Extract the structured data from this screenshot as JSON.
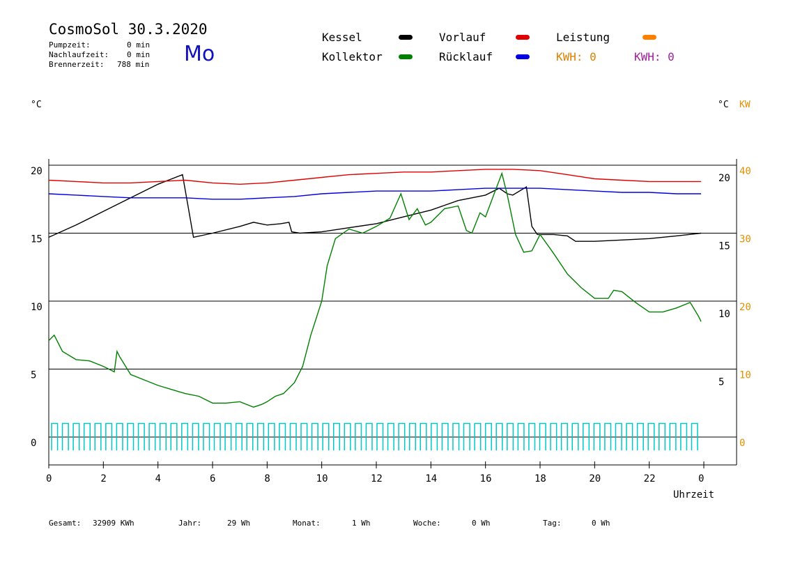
{
  "header": {
    "title": "CosmoSol 30.3.2020",
    "pump_label": "Pumpzeit:",
    "pump_value": "0 min",
    "nachlauf_label": "Nachlaufzeit:",
    "nachlauf_value": "0 min",
    "brenner_label": "Brennerzeit:",
    "brenner_value": "788 min",
    "day": "Mo"
  },
  "legend": {
    "kessel": "Kessel",
    "vorlauf": "Vorlauf",
    "leistung": "Leistung",
    "kollektor": "Kollektor",
    "ruecklauf": "Rücklauf",
    "kwh1": "KWH: 0",
    "kwh2": "KWH: 0"
  },
  "colors": {
    "kessel": "#000000",
    "vorlauf": "#e00000",
    "leistung": "#ff8000",
    "kollektor": "#008000",
    "ruecklauf": "#0000e0",
    "pump": "#00c8c8",
    "kwh1": "#e08000",
    "kwh2": "#a020a0",
    "axis_right_orange": "#e09000"
  },
  "footer": {
    "gesamt_label": "Gesamt:",
    "gesamt_value": "32909 KWh",
    "jahr_label": "Jahr:",
    "jahr_value": "29 Wh",
    "monat_label": "Monat:",
    "monat_value": "1 Wh",
    "woche_label": "Woche:",
    "woche_value": "0 Wh",
    "tag_label": "Tag:",
    "tag_value": "0 Wh"
  },
  "chart_data": {
    "type": "line",
    "xlabel": "Uhrzeit",
    "ylabel_left": "°C",
    "ylabel_right": "°C",
    "ylabel_right2": "KW",
    "xlim": [
      0,
      24
    ],
    "ylim": [
      0,
      20
    ],
    "x_ticks": [
      "0",
      "2",
      "4",
      "6",
      "8",
      "10",
      "12",
      "14",
      "16",
      "18",
      "20",
      "22",
      "0"
    ],
    "y_ticks_left": [
      "0",
      "5",
      "10",
      "15",
      "20"
    ],
    "y_ticks_right": [
      "5",
      "10",
      "15",
      "20"
    ],
    "y_ticks_right_kw": [
      "0",
      "10",
      "20",
      "30",
      "40"
    ],
    "grid": true,
    "series": [
      {
        "name": "Kessel",
        "color": "#000000",
        "x": [
          0,
          1,
          2,
          3,
          4,
          4.9,
          5.1,
          5.3,
          6,
          7,
          7.5,
          8,
          8.5,
          8.8,
          8.9,
          9.2,
          10,
          11,
          12,
          13,
          14,
          15,
          16,
          16.5,
          16.8,
          17,
          17.5,
          17.7,
          17.9,
          18.5,
          19,
          19.3,
          20,
          21,
          22,
          23,
          23.9
        ],
        "y": [
          14.7,
          15.6,
          16.6,
          17.6,
          18.6,
          19.3,
          17.0,
          14.7,
          15.0,
          15.5,
          15.8,
          15.6,
          15.7,
          15.8,
          15.1,
          15.0,
          15.1,
          15.4,
          15.7,
          16.2,
          16.7,
          17.4,
          17.8,
          18.3,
          17.9,
          17.8,
          18.4,
          15.5,
          14.9,
          14.9,
          14.8,
          14.4,
          14.4,
          14.5,
          14.6,
          14.8,
          15.0
        ]
      },
      {
        "name": "Vorlauf",
        "color": "#e00000",
        "x": [
          0,
          1,
          2,
          3,
          4,
          5,
          6,
          7,
          8,
          9,
          10,
          11,
          12,
          13,
          14,
          15,
          16,
          17,
          18,
          19,
          20,
          21,
          22,
          23,
          23.9
        ],
        "y": [
          18.9,
          18.8,
          18.7,
          18.7,
          18.8,
          18.9,
          18.7,
          18.6,
          18.7,
          18.9,
          19.1,
          19.3,
          19.4,
          19.5,
          19.5,
          19.6,
          19.7,
          19.7,
          19.6,
          19.3,
          19.0,
          18.9,
          18.8,
          18.8,
          18.8
        ]
      },
      {
        "name": "Rücklauf",
        "color": "#0000e0",
        "x": [
          0,
          1,
          2,
          3,
          4,
          5,
          6,
          7,
          8,
          9,
          10,
          11,
          12,
          13,
          14,
          15,
          16,
          17,
          18,
          19,
          20,
          21,
          22,
          23,
          23.9
        ],
        "y": [
          17.9,
          17.8,
          17.7,
          17.6,
          17.6,
          17.6,
          17.5,
          17.5,
          17.6,
          17.7,
          17.9,
          18.0,
          18.1,
          18.1,
          18.1,
          18.2,
          18.3,
          18.3,
          18.3,
          18.2,
          18.1,
          18.0,
          18.0,
          17.9,
          17.9
        ]
      },
      {
        "name": "Kollektor",
        "color": "#008000",
        "x": [
          0,
          0.2,
          0.5,
          1,
          1.5,
          2,
          2.4,
          2.5,
          2.6,
          3,
          3.5,
          4,
          4.5,
          5,
          5.5,
          6,
          6.5,
          7,
          7.5,
          7.8,
          8,
          8.3,
          8.6,
          9,
          9.3,
          9.6,
          10,
          10.2,
          10.5,
          11,
          11.5,
          12,
          12.5,
          12.9,
          13.2,
          13.5,
          13.8,
          14,
          14.5,
          15,
          15.3,
          15.5,
          15.8,
          16,
          16.3,
          16.6,
          16.8,
          17.1,
          17.4,
          17.7,
          18,
          18.5,
          19,
          19.5,
          20,
          20.5,
          20.7,
          21,
          21.5,
          22,
          22.5,
          23,
          23.5,
          23.8,
          23.9
        ],
        "y": [
          7.1,
          7.5,
          6.3,
          5.7,
          5.6,
          5.2,
          4.8,
          6.3,
          5.9,
          4.6,
          4.2,
          3.8,
          3.5,
          3.2,
          3.0,
          2.5,
          2.5,
          2.6,
          2.2,
          2.4,
          2.6,
          3.0,
          3.2,
          4.0,
          5.2,
          7.5,
          10.0,
          12.6,
          14.6,
          15.3,
          15.0,
          15.5,
          16.1,
          17.9,
          16.0,
          16.8,
          15.6,
          15.8,
          16.8,
          17.0,
          15.2,
          15.0,
          16.5,
          16.2,
          17.8,
          19.4,
          17.8,
          14.9,
          13.6,
          13.7,
          14.9,
          13.5,
          12.0,
          11.0,
          10.2,
          10.2,
          10.8,
          10.7,
          9.9,
          9.2,
          9.2,
          9.5,
          9.9,
          8.9,
          8.5
        ]
      }
    ],
    "pump": {
      "name": "Pumpzeit",
      "color": "#00c8c8",
      "pulses": 60,
      "height": 1.0
    }
  }
}
